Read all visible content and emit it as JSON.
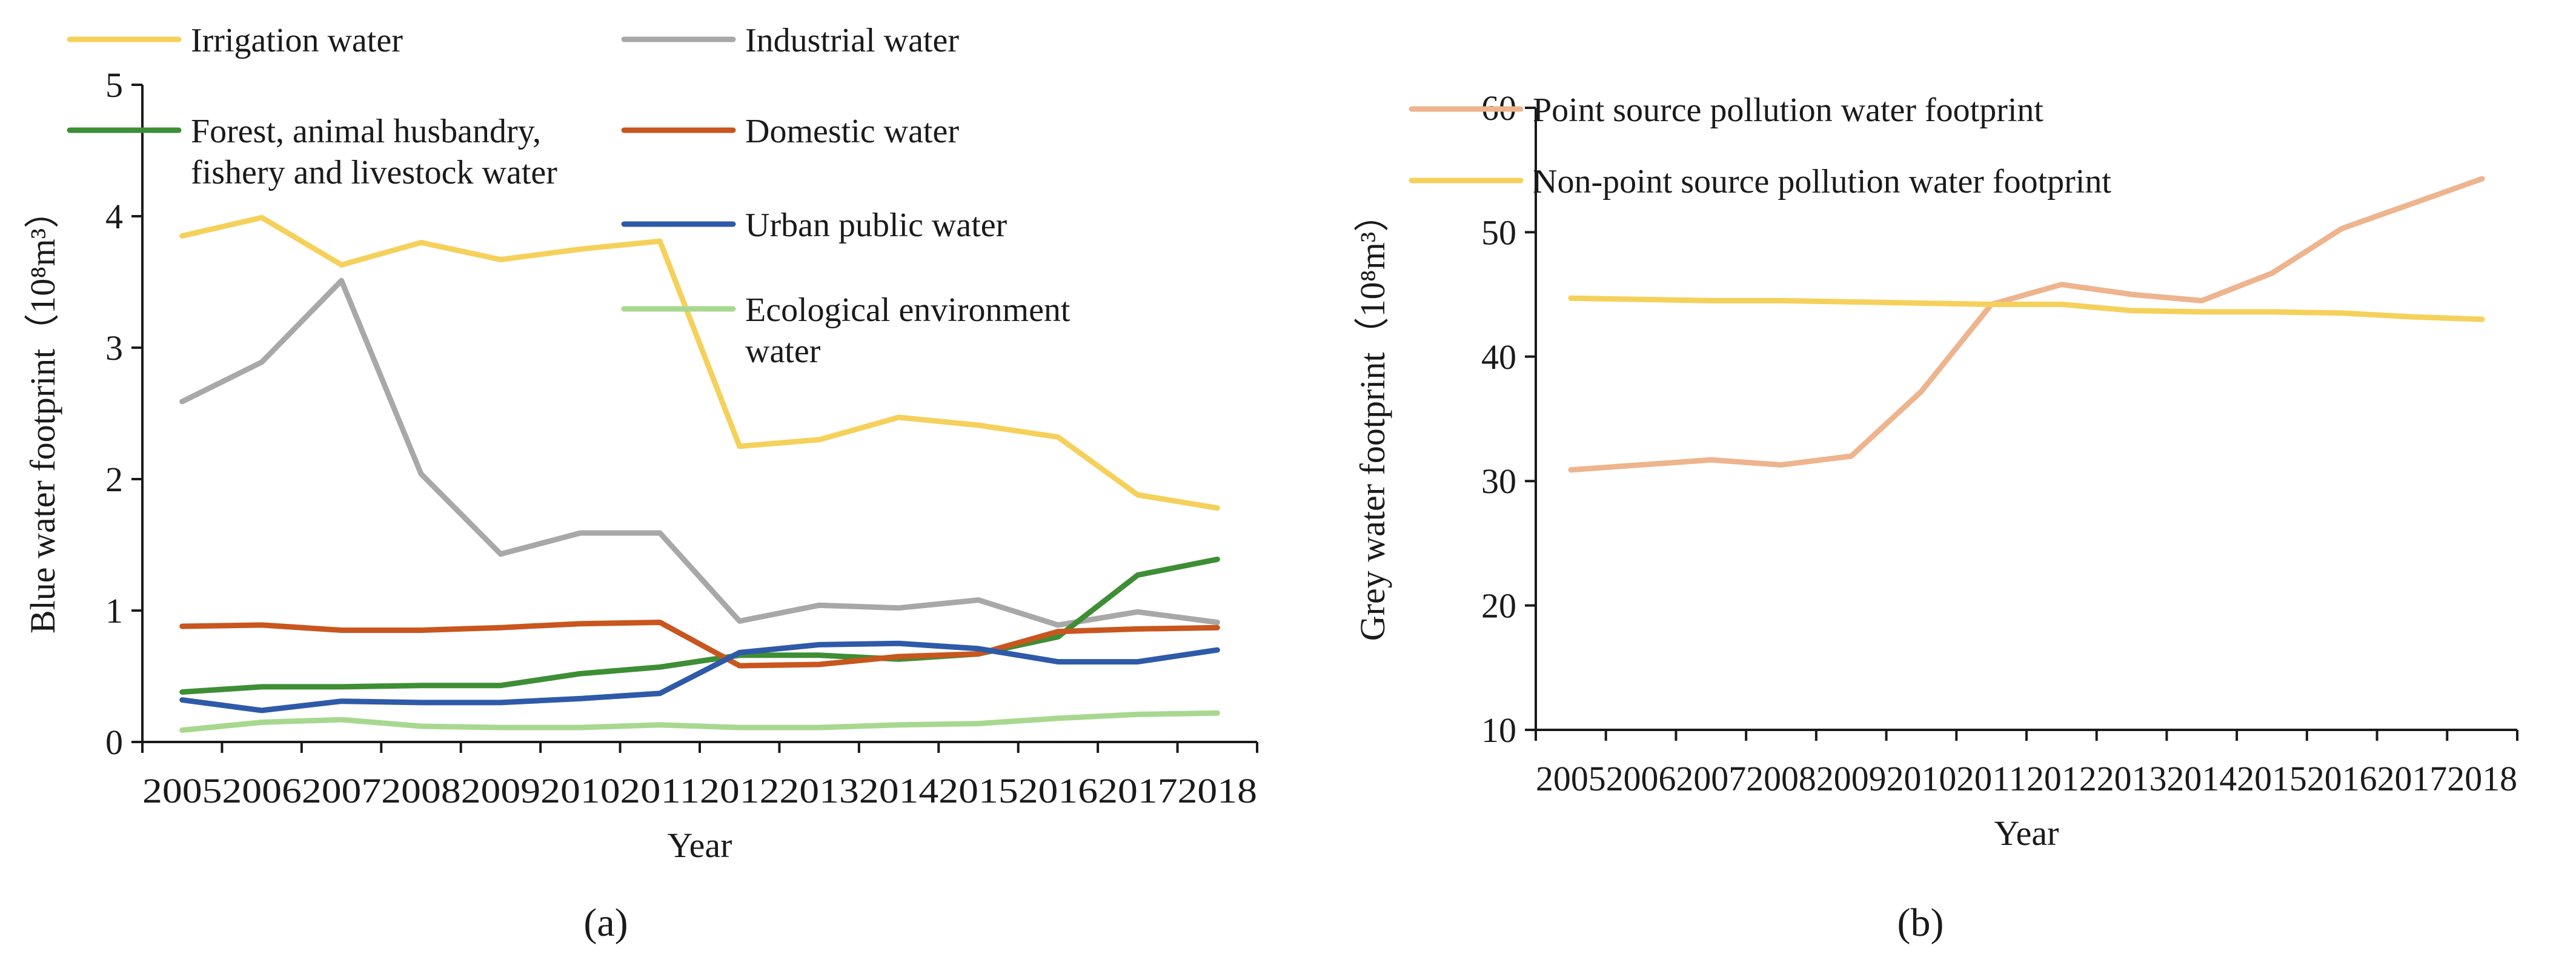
{
  "chart_data": [
    {
      "type": "line",
      "panel": "a",
      "panel_label": "(a)",
      "xlabel": "Year",
      "ylabel": "Blue water footprint（10⁸m³）",
      "ylim": [
        0,
        5
      ],
      "yticks": [
        0,
        1,
        2,
        3,
        4,
        5
      ],
      "x": [
        "2005",
        "2006",
        "2007",
        "2008",
        "2009",
        "2010",
        "2011",
        "2012",
        "2013",
        "2014",
        "2015",
        "2016",
        "2017",
        "2018"
      ],
      "series": [
        {
          "name": "Irrigation water",
          "color": "#F5D15C",
          "values": [
            3.85,
            3.99,
            3.63,
            3.8,
            3.67,
            3.75,
            3.81,
            2.25,
            2.3,
            2.47,
            2.41,
            2.32,
            1.88,
            1.78
          ]
        },
        {
          "name": "Industrial water",
          "color": "#A8A8A8",
          "values": [
            2.59,
            2.89,
            3.51,
            2.04,
            1.43,
            1.59,
            1.59,
            0.92,
            1.04,
            1.02,
            1.08,
            0.89,
            0.99,
            0.91
          ]
        },
        {
          "name": "Forest, animal husbandry, fishery and livestock water",
          "name_lines": [
            "Forest, animal husbandry,",
            "fishery and livestock water"
          ],
          "color": "#3E8E35",
          "values": [
            0.38,
            0.42,
            0.42,
            0.43,
            0.43,
            0.52,
            0.57,
            0.66,
            0.66,
            0.63,
            0.67,
            0.8,
            1.27,
            1.39
          ]
        },
        {
          "name": "Domestic water",
          "color": "#C8561E",
          "values": [
            0.88,
            0.89,
            0.85,
            0.85,
            0.87,
            0.9,
            0.91,
            0.58,
            0.59,
            0.65,
            0.67,
            0.84,
            0.86,
            0.87
          ]
        },
        {
          "name": "Urban public water",
          "color": "#2E5AA8",
          "values": [
            0.32,
            0.24,
            0.31,
            0.3,
            0.3,
            0.33,
            0.37,
            0.68,
            0.74,
            0.75,
            0.71,
            0.61,
            0.61,
            0.7
          ]
        },
        {
          "name": "Ecological environment water",
          "name_lines": [
            "Ecological environment",
            "water"
          ],
          "color": "#A8D890",
          "values": [
            0.09,
            0.15,
            0.17,
            0.12,
            0.11,
            0.11,
            0.13,
            0.11,
            0.11,
            0.13,
            0.14,
            0.18,
            0.21,
            0.22
          ]
        }
      ]
    },
    {
      "type": "line",
      "panel": "b",
      "panel_label": "(b)",
      "xlabel": "Year",
      "ylabel": "Grey water footprint（10⁸m³）",
      "ylim": [
        10,
        60
      ],
      "yticks": [
        10,
        20,
        30,
        40,
        50,
        60
      ],
      "x": [
        "2005",
        "2006",
        "2007",
        "2008",
        "2009",
        "2010",
        "2011",
        "2012",
        "2013",
        "2014",
        "2015",
        "2016",
        "2017",
        "2018"
      ],
      "series": [
        {
          "name": "Point source pollution water footprint",
          "color": "#EDB48E",
          "values": [
            30.9,
            31.3,
            31.7,
            31.3,
            32.0,
            37.2,
            44.2,
            45.8,
            45.0,
            44.5,
            46.7,
            50.3,
            52.3,
            54.3
          ]
        },
        {
          "name": "Non-point source pollution water footprint",
          "color": "#F5D15C",
          "values": [
            44.7,
            44.6,
            44.5,
            44.5,
            44.4,
            44.3,
            44.2,
            44.2,
            43.7,
            43.6,
            43.6,
            43.5,
            43.2,
            43.0
          ]
        }
      ]
    }
  ]
}
